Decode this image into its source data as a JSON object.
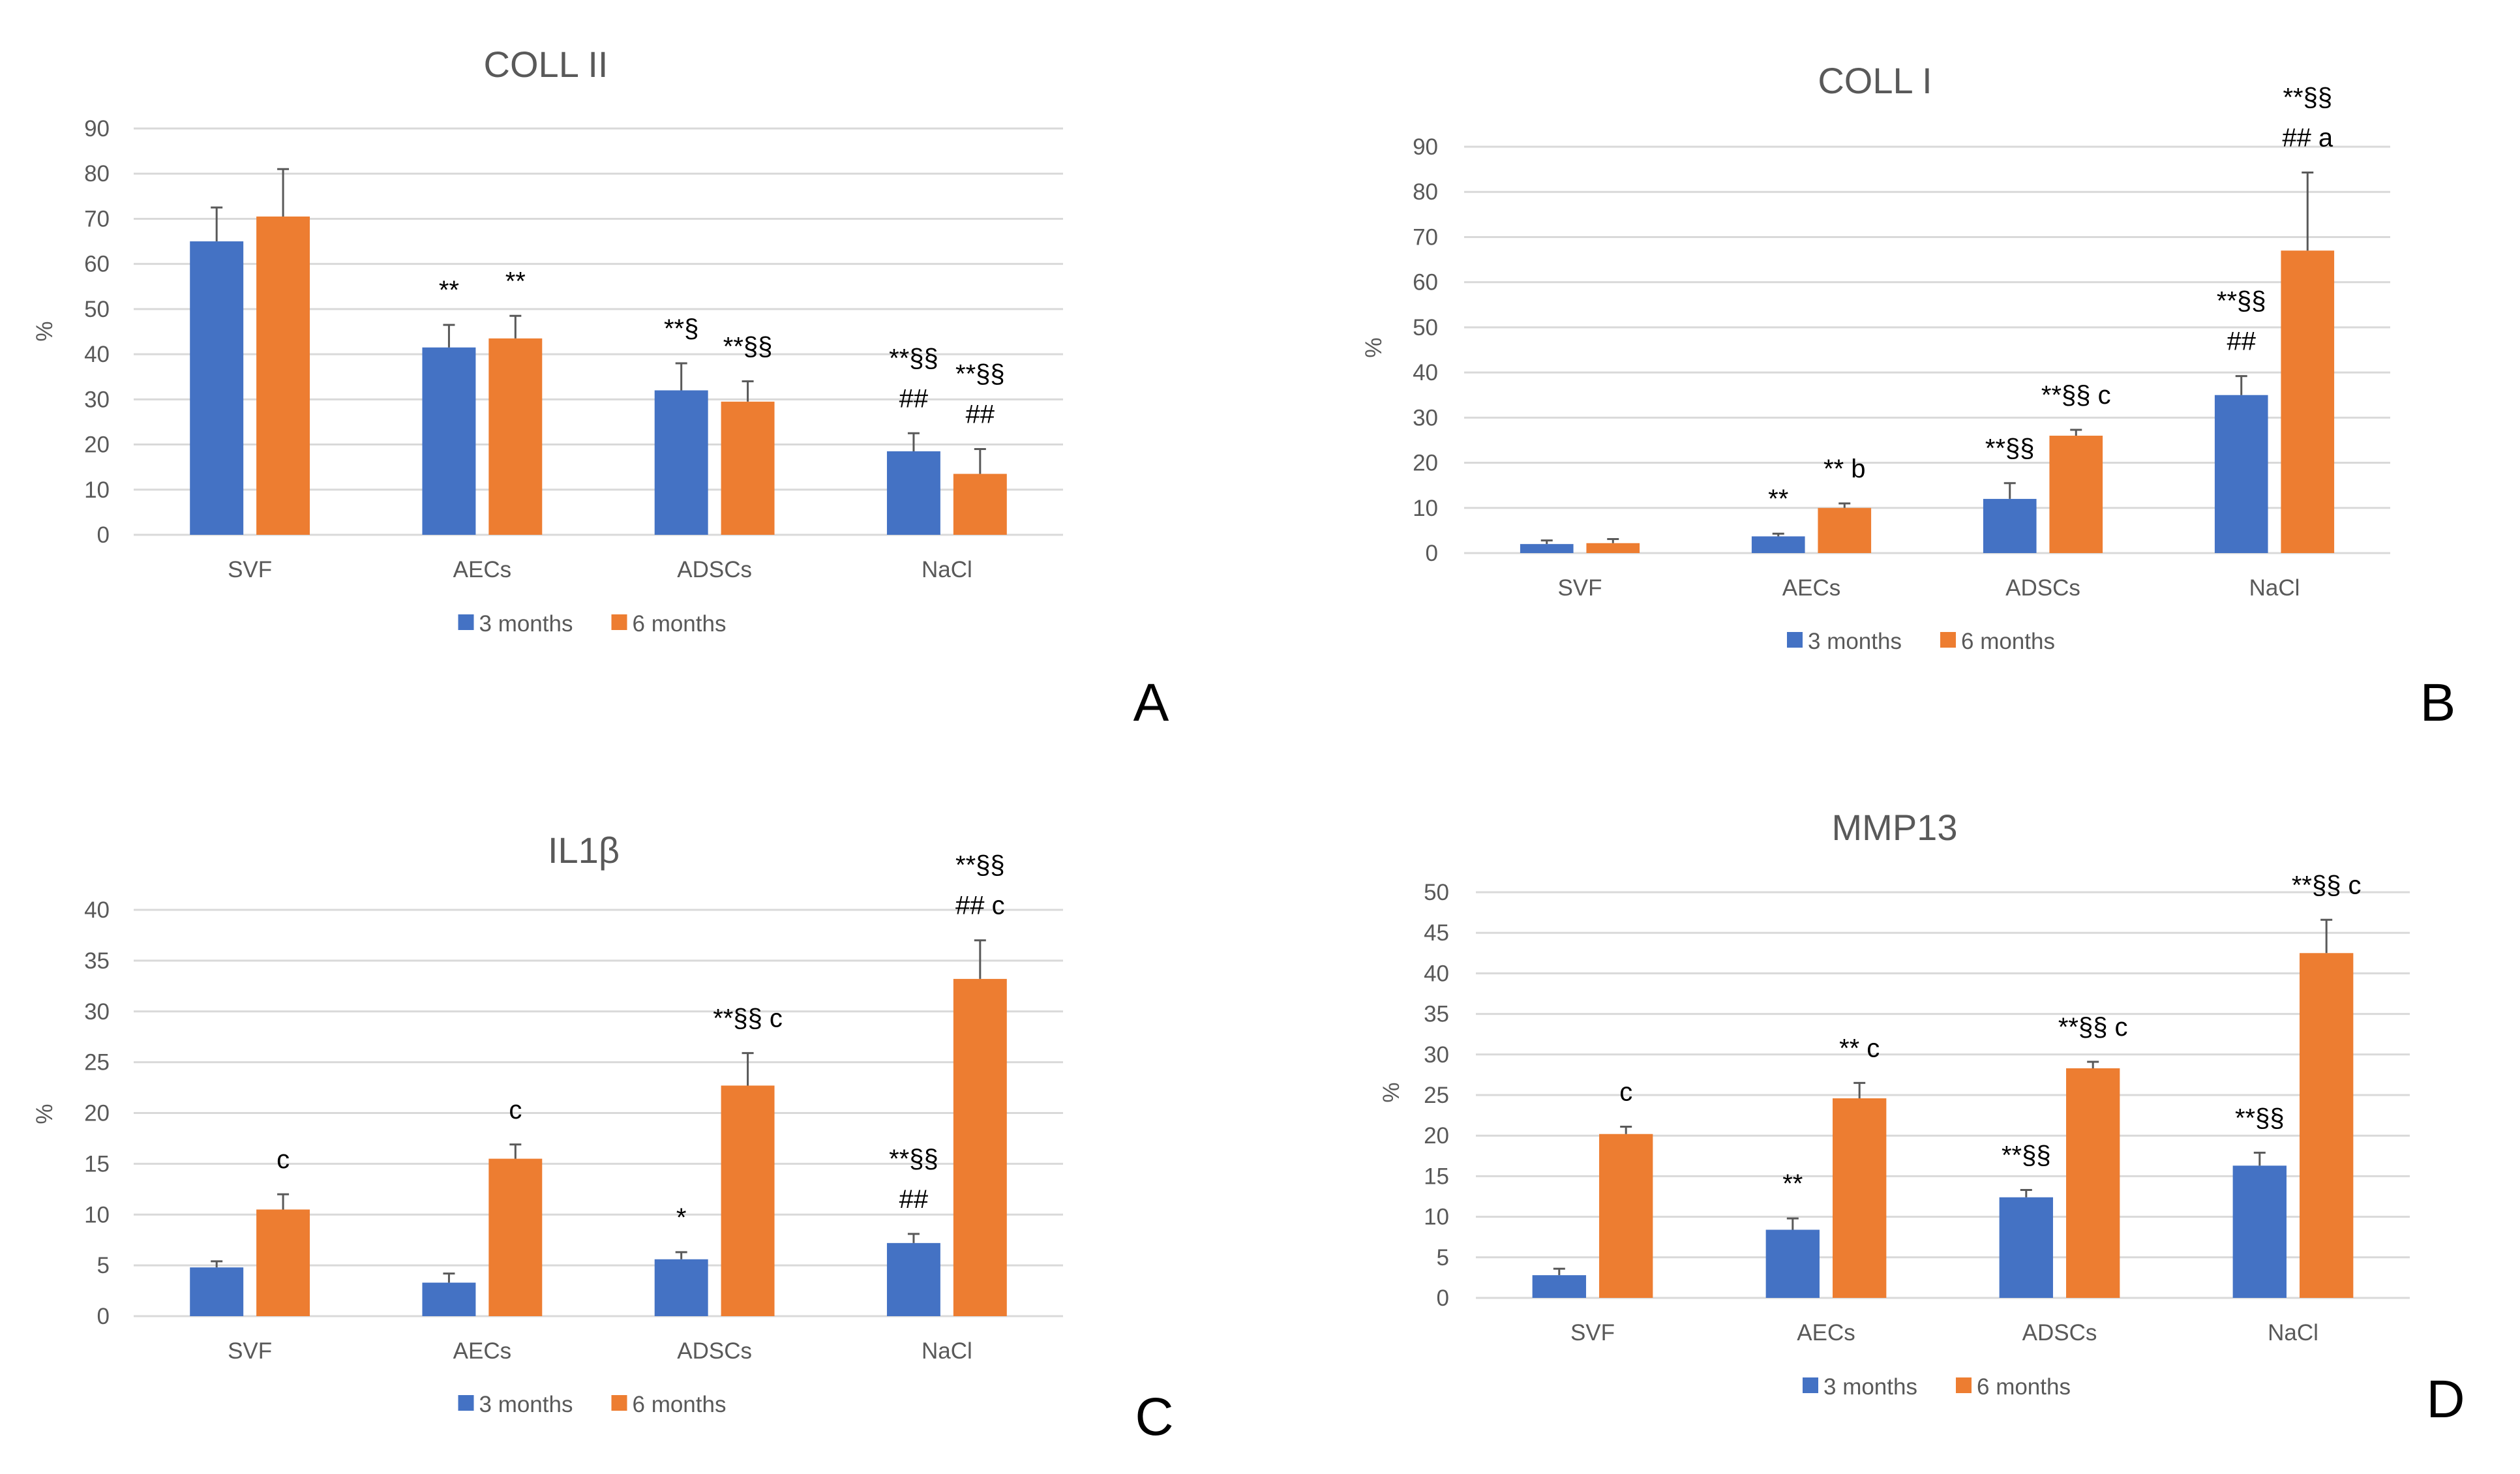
{
  "colors": {
    "series1": "#4472C4",
    "series2": "#ED7D31",
    "grid": "#D9D9D9",
    "text": "#595959"
  },
  "chart_data": [
    {
      "panel": "A",
      "type": "bar",
      "title": "COLL II",
      "ylabel": "%",
      "xlabel": "",
      "categories": [
        "SVF",
        "AECs",
        "ADSCs",
        "NaCl"
      ],
      "ylim": [
        0,
        90
      ],
      "ytick_step": 10,
      "grid": true,
      "legend": "bottom",
      "series": [
        {
          "name": "3 months",
          "values": [
            65,
            41.5,
            32,
            18.5
          ],
          "error_upper": [
            72.5,
            46.5,
            38,
            22.5
          ],
          "annotations": [
            "",
            "**",
            "**§",
            "**§§|##"
          ]
        },
        {
          "name": "6 months",
          "values": [
            70.5,
            43.5,
            29.5,
            13.5
          ],
          "error_upper": [
            81,
            48.5,
            34,
            19
          ],
          "annotations": [
            "",
            "**",
            "**§§",
            "**§§|##"
          ]
        }
      ]
    },
    {
      "panel": "B",
      "type": "bar",
      "title": "COLL I",
      "ylabel": "%",
      "xlabel": "",
      "categories": [
        "SVF",
        "AECs",
        "ADSCs",
        "NaCl"
      ],
      "ylim": [
        0,
        90
      ],
      "ytick_step": 10,
      "grid": true,
      "legend": "bottom",
      "series": [
        {
          "name": "3 months",
          "values": [
            2,
            3.7,
            12,
            35
          ],
          "error_upper": [
            2.8,
            4.3,
            15.5,
            39.2
          ],
          "annotations": [
            "",
            "**",
            "**§§",
            "**§§|##"
          ]
        },
        {
          "name": "6 months",
          "values": [
            2.2,
            10,
            26,
            67
          ],
          "error_upper": [
            3.1,
            11,
            27.3,
            84.3
          ],
          "annotations": [
            "",
            "** b",
            "**§§ c",
            "**§§|## a"
          ]
        }
      ]
    },
    {
      "panel": "C",
      "type": "bar",
      "title": "IL1β",
      "ylabel": "%",
      "xlabel": "",
      "categories": [
        "SVF",
        "AECs",
        "ADSCs",
        "NaCl"
      ],
      "ylim": [
        0,
        40
      ],
      "ytick_step": 5,
      "grid": true,
      "legend": "bottom",
      "series": [
        {
          "name": "3 months",
          "values": [
            4.8,
            3.3,
            5.6,
            7.2
          ],
          "error_upper": [
            5.4,
            4.2,
            6.3,
            8.1
          ],
          "annotations": [
            "",
            "",
            "*",
            "**§§|##"
          ]
        },
        {
          "name": "6 months",
          "values": [
            10.5,
            15.5,
            22.7,
            33.2
          ],
          "error_upper": [
            12,
            16.9,
            25.9,
            37
          ],
          "annotations": [
            "c",
            "c",
            "**§§ c",
            "**§§|## c"
          ]
        }
      ]
    },
    {
      "panel": "D",
      "type": "bar",
      "title": "MMP13",
      "ylabel": "%",
      "xlabel": "",
      "categories": [
        "SVF",
        "AECs",
        "ADSCs",
        "NaCl"
      ],
      "ylim": [
        0,
        50
      ],
      "ytick_step": 5,
      "grid": true,
      "legend": "bottom",
      "series": [
        {
          "name": "3 months",
          "values": [
            2.8,
            8.4,
            12.4,
            16.3
          ],
          "error_upper": [
            3.6,
            9.8,
            13.3,
            17.9
          ],
          "annotations": [
            "",
            "**",
            "**§§",
            "**§§"
          ]
        },
        {
          "name": "6 months",
          "values": [
            20.2,
            24.6,
            28.3,
            42.5
          ],
          "error_upper": [
            21.1,
            26.5,
            29.1,
            46.6
          ],
          "annotations": [
            "c",
            "** c",
            "**§§ c",
            "**§§ c"
          ]
        }
      ]
    }
  ]
}
